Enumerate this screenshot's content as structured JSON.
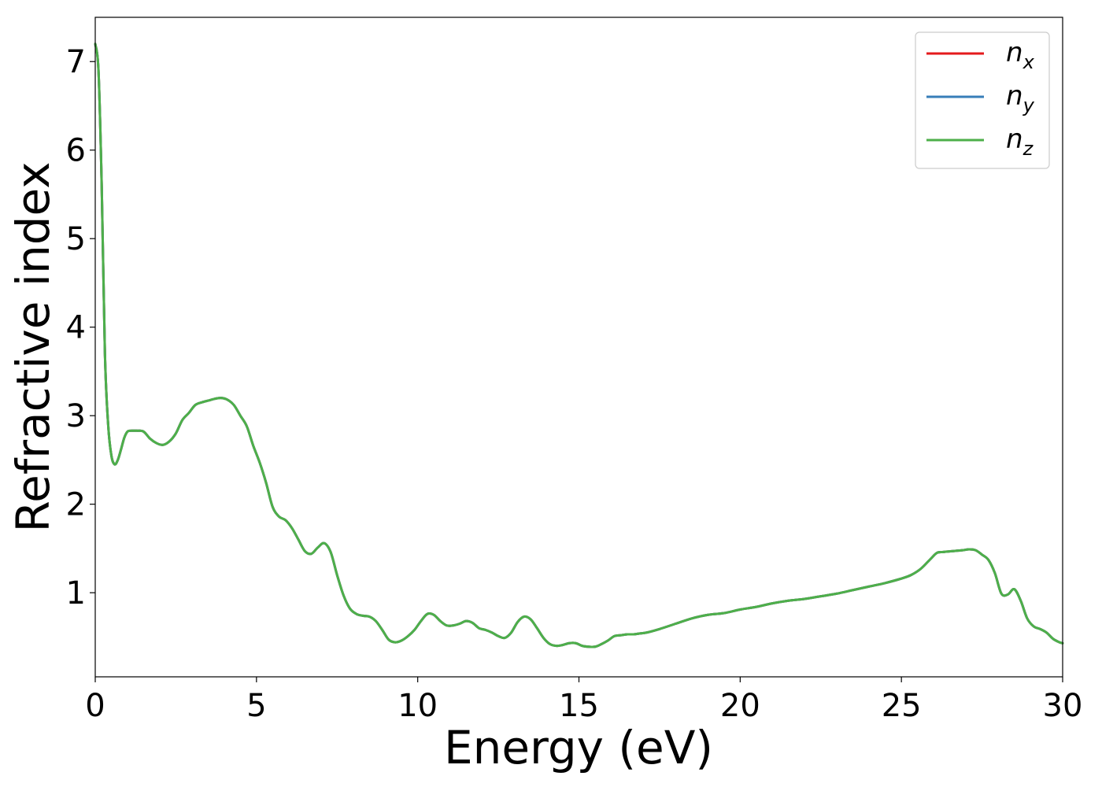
{
  "chart_data": {
    "type": "line",
    "title": "",
    "xlabel": "Energy (eV)",
    "ylabel": "Refractive index",
    "xlim": [
      0,
      30
    ],
    "ylim": [
      0.05,
      7.5
    ],
    "xticks": [
      0,
      5,
      10,
      15,
      20,
      25,
      30
    ],
    "yticks": [
      1,
      2,
      3,
      4,
      5,
      6,
      7
    ],
    "grid": false,
    "legend_position": "top-right",
    "x": [
      0.0,
      0.1,
      0.2,
      0.3,
      0.4,
      0.5,
      0.6,
      0.7,
      0.8,
      0.9,
      1.0,
      1.1,
      1.2,
      1.3,
      1.5,
      1.7,
      1.9,
      2.1,
      2.3,
      2.5,
      2.7,
      2.9,
      3.1,
      3.3,
      3.5,
      3.7,
      3.9,
      4.1,
      4.3,
      4.5,
      4.7,
      4.9,
      5.1,
      5.3,
      5.5,
      5.7,
      5.9,
      6.1,
      6.3,
      6.5,
      6.7,
      6.9,
      7.1,
      7.3,
      7.5,
      7.7,
      7.9,
      8.1,
      8.3,
      8.5,
      8.7,
      8.9,
      9.1,
      9.3,
      9.5,
      9.7,
      9.9,
      10.1,
      10.3,
      10.5,
      10.7,
      10.9,
      11.1,
      11.3,
      11.5,
      11.7,
      11.9,
      12.1,
      12.3,
      12.5,
      12.7,
      12.9,
      13.1,
      13.3,
      13.5,
      13.7,
      13.9,
      14.1,
      14.3,
      14.5,
      14.7,
      14.9,
      15.1,
      15.3,
      15.5,
      15.7,
      15.9,
      16.1,
      16.3,
      16.5,
      16.7,
      16.9,
      17.1,
      17.5,
      18.0,
      18.5,
      19.0,
      19.5,
      20.0,
      20.5,
      21.0,
      21.5,
      22.0,
      22.5,
      23.0,
      23.5,
      24.0,
      24.5,
      25.0,
      25.3,
      25.6,
      25.9,
      26.1,
      26.3,
      26.6,
      26.9,
      27.1,
      27.3,
      27.5,
      27.7,
      27.9,
      28.1,
      28.3,
      28.5,
      28.7,
      28.9,
      29.1,
      29.3,
      29.5,
      29.7,
      29.9,
      30.0
    ],
    "series": [
      {
        "name": "x",
        "color": "#e41a1c",
        "values": [
          7.2,
          6.9,
          5.6,
          3.7,
          2.9,
          2.55,
          2.45,
          2.5,
          2.62,
          2.75,
          2.82,
          2.83,
          2.83,
          2.83,
          2.82,
          2.74,
          2.69,
          2.67,
          2.71,
          2.8,
          2.95,
          3.03,
          3.12,
          3.15,
          3.17,
          3.19,
          3.2,
          3.18,
          3.12,
          3.0,
          2.88,
          2.66,
          2.47,
          2.24,
          1.97,
          1.86,
          1.82,
          1.73,
          1.6,
          1.47,
          1.44,
          1.51,
          1.56,
          1.46,
          1.2,
          0.97,
          0.82,
          0.76,
          0.74,
          0.73,
          0.68,
          0.58,
          0.47,
          0.44,
          0.46,
          0.51,
          0.58,
          0.68,
          0.76,
          0.75,
          0.68,
          0.63,
          0.63,
          0.65,
          0.68,
          0.66,
          0.6,
          0.58,
          0.55,
          0.51,
          0.49,
          0.55,
          0.67,
          0.73,
          0.7,
          0.6,
          0.49,
          0.42,
          0.4,
          0.41,
          0.43,
          0.43,
          0.4,
          0.39,
          0.39,
          0.42,
          0.46,
          0.51,
          0.52,
          0.53,
          0.53,
          0.54,
          0.55,
          0.59,
          0.65,
          0.71,
          0.75,
          0.77,
          0.81,
          0.84,
          0.88,
          0.91,
          0.93,
          0.96,
          0.99,
          1.03,
          1.07,
          1.11,
          1.16,
          1.2,
          1.27,
          1.38,
          1.45,
          1.46,
          1.47,
          1.48,
          1.49,
          1.48,
          1.43,
          1.37,
          1.22,
          0.99,
          0.98,
          1.04,
          0.91,
          0.71,
          0.62,
          0.59,
          0.55,
          0.48,
          0.44,
          0.43
        ]
      },
      {
        "name": "y",
        "color": "#377eb8",
        "values": [
          7.2,
          6.9,
          5.6,
          3.7,
          2.9,
          2.55,
          2.45,
          2.5,
          2.62,
          2.75,
          2.82,
          2.83,
          2.83,
          2.83,
          2.82,
          2.74,
          2.69,
          2.67,
          2.71,
          2.8,
          2.95,
          3.03,
          3.12,
          3.15,
          3.17,
          3.19,
          3.2,
          3.18,
          3.12,
          3.0,
          2.88,
          2.66,
          2.47,
          2.24,
          1.97,
          1.86,
          1.82,
          1.73,
          1.6,
          1.47,
          1.44,
          1.51,
          1.56,
          1.46,
          1.2,
          0.97,
          0.82,
          0.76,
          0.74,
          0.73,
          0.68,
          0.58,
          0.47,
          0.44,
          0.46,
          0.51,
          0.58,
          0.68,
          0.76,
          0.75,
          0.68,
          0.63,
          0.63,
          0.65,
          0.68,
          0.66,
          0.6,
          0.58,
          0.55,
          0.51,
          0.49,
          0.55,
          0.67,
          0.73,
          0.7,
          0.6,
          0.49,
          0.42,
          0.4,
          0.41,
          0.43,
          0.43,
          0.4,
          0.39,
          0.39,
          0.42,
          0.46,
          0.51,
          0.52,
          0.53,
          0.53,
          0.54,
          0.55,
          0.59,
          0.65,
          0.71,
          0.75,
          0.77,
          0.81,
          0.84,
          0.88,
          0.91,
          0.93,
          0.96,
          0.99,
          1.03,
          1.07,
          1.11,
          1.16,
          1.2,
          1.27,
          1.38,
          1.45,
          1.46,
          1.47,
          1.48,
          1.49,
          1.48,
          1.43,
          1.37,
          1.22,
          0.99,
          0.98,
          1.04,
          0.91,
          0.71,
          0.62,
          0.59,
          0.55,
          0.48,
          0.44,
          0.43
        ]
      },
      {
        "name": "z",
        "color": "#4daf4a",
        "values": [
          7.2,
          6.9,
          5.6,
          3.7,
          2.9,
          2.55,
          2.45,
          2.5,
          2.62,
          2.75,
          2.82,
          2.83,
          2.83,
          2.83,
          2.82,
          2.74,
          2.69,
          2.67,
          2.71,
          2.8,
          2.95,
          3.03,
          3.12,
          3.15,
          3.17,
          3.19,
          3.2,
          3.18,
          3.12,
          3.0,
          2.88,
          2.66,
          2.47,
          2.24,
          1.97,
          1.86,
          1.82,
          1.73,
          1.6,
          1.47,
          1.44,
          1.51,
          1.56,
          1.46,
          1.2,
          0.97,
          0.82,
          0.76,
          0.74,
          0.73,
          0.68,
          0.58,
          0.47,
          0.44,
          0.46,
          0.51,
          0.58,
          0.68,
          0.76,
          0.75,
          0.68,
          0.63,
          0.63,
          0.65,
          0.68,
          0.66,
          0.6,
          0.58,
          0.55,
          0.51,
          0.49,
          0.55,
          0.67,
          0.73,
          0.7,
          0.6,
          0.49,
          0.42,
          0.4,
          0.41,
          0.43,
          0.43,
          0.4,
          0.39,
          0.39,
          0.42,
          0.46,
          0.51,
          0.52,
          0.53,
          0.53,
          0.54,
          0.55,
          0.59,
          0.65,
          0.71,
          0.75,
          0.77,
          0.81,
          0.84,
          0.88,
          0.91,
          0.93,
          0.96,
          0.99,
          1.03,
          1.07,
          1.11,
          1.16,
          1.2,
          1.27,
          1.38,
          1.45,
          1.46,
          1.47,
          1.48,
          1.49,
          1.48,
          1.43,
          1.37,
          1.22,
          0.99,
          0.98,
          1.04,
          0.91,
          0.71,
          0.62,
          0.59,
          0.55,
          0.48,
          0.44,
          0.43
        ]
      }
    ],
    "legend": [
      {
        "symbol": "n",
        "subscript": "x",
        "color": "#e41a1c"
      },
      {
        "symbol": "n",
        "subscript": "y",
        "color": "#377eb8"
      },
      {
        "symbol": "n",
        "subscript": "z",
        "color": "#4daf4a"
      }
    ]
  }
}
